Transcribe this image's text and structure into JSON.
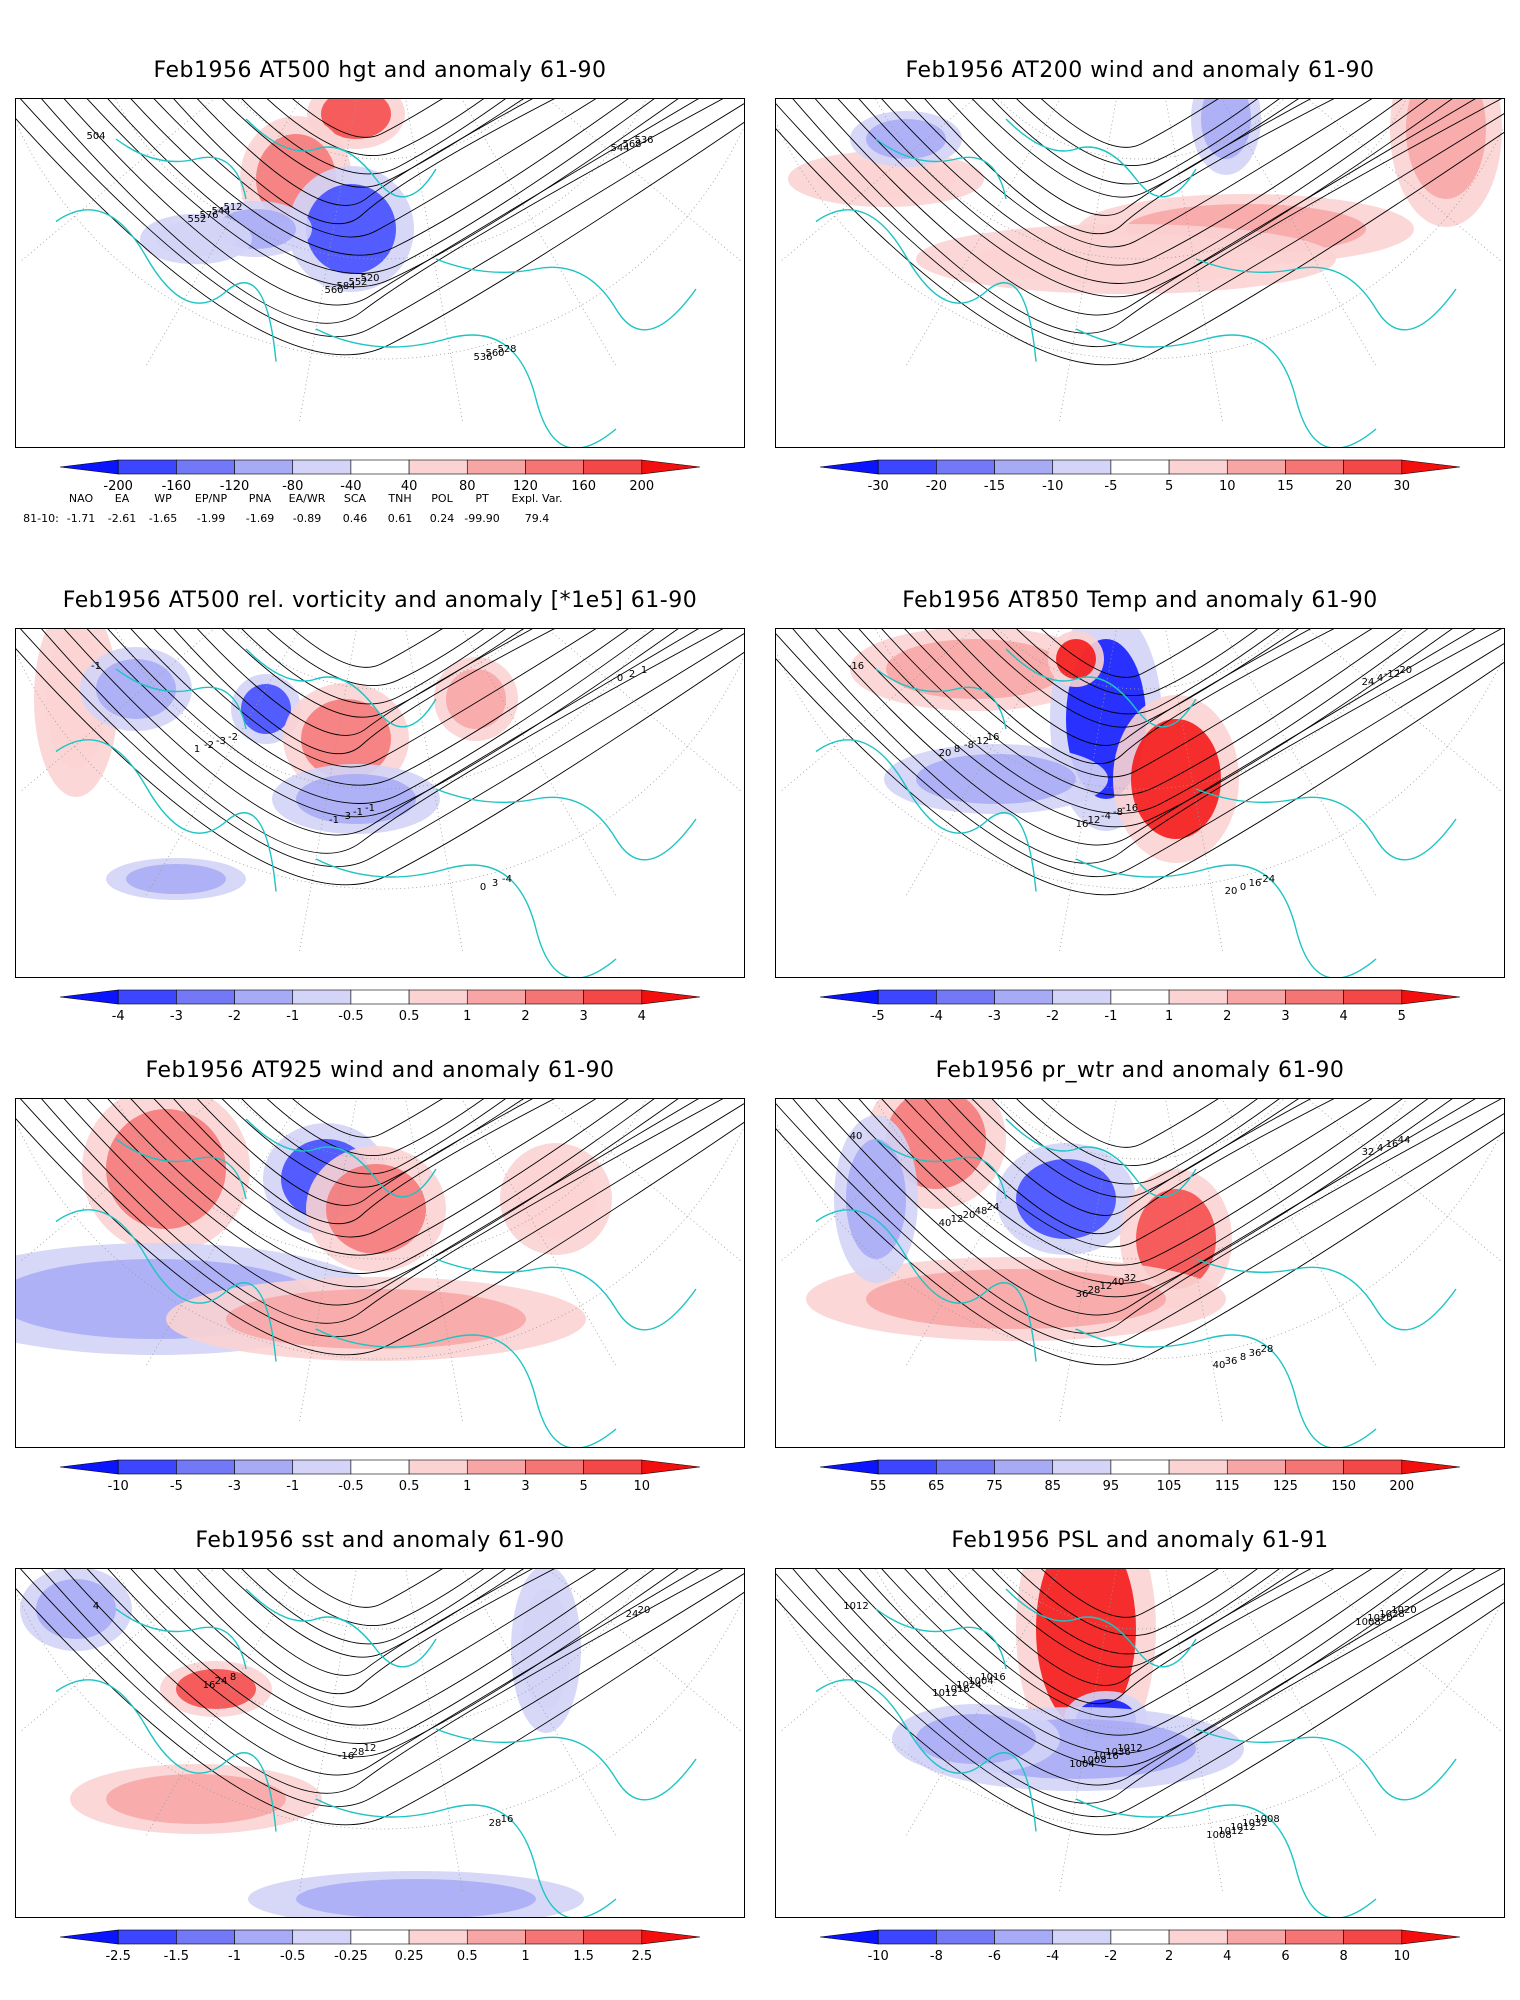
{
  "panels": [
    {
      "id": "p1",
      "title": "Feb1956 AT500 hgt and anomaly 61-90",
      "colorbar": {
        "labels": [
          "-200",
          "-160",
          "-120",
          "-80",
          "-40",
          "40",
          "80",
          "120",
          "160",
          "200"
        ]
      },
      "contour_labels": [
        "504",
        "512",
        "520",
        "528",
        "536",
        "544",
        "552",
        "560",
        "568",
        "576",
        "584",
        "536",
        "544",
        "552",
        "560"
      ]
    },
    {
      "id": "p2",
      "title": "Feb1956 AT200 wind and anomaly 61-90",
      "colorbar": {
        "labels": [
          "-30",
          "-20",
          "-15",
          "-10",
          "-5",
          "5",
          "10",
          "15",
          "20",
          "30"
        ]
      },
      "contour_labels": []
    },
    {
      "id": "p3",
      "title": "Feb1956 AT500 rel. vorticity and anomaly [*1e5] 61-90",
      "colorbar": {
        "labels": [
          "-4",
          "-3",
          "-2",
          "-1",
          "-0.5",
          "0.5",
          "1",
          "2",
          "3",
          "4"
        ]
      },
      "contour_labels": [
        "-1",
        "-2",
        "-1",
        "-4",
        "1",
        "-3",
        "-1",
        "3",
        "2",
        "-2",
        "-3",
        "0",
        "0",
        "1",
        "-1"
      ]
    },
    {
      "id": "p4",
      "title": "Feb1956 AT850 Temp and anomaly 61-90",
      "colorbar": {
        "labels": [
          "-5",
          "-4",
          "-3",
          "-2",
          "-1",
          "1",
          "2",
          "3",
          "4",
          "5"
        ]
      },
      "contour_labels": [
        "-16",
        "16",
        "-16",
        "-24",
        "-20",
        "-12",
        "-8",
        "16",
        "-12",
        "-8",
        "-4",
        "0",
        "4",
        "8",
        "12",
        "20",
        "24",
        "20",
        "16"
      ]
    },
    {
      "id": "p5",
      "title": "Feb1956 AT925 wind and anomaly 61-90",
      "colorbar": {
        "labels": [
          "-10",
          "-5",
          "-3",
          "-1",
          "-0.5",
          "0.5",
          "1",
          "3",
          "5",
          "10"
        ]
      },
      "contour_labels": []
    },
    {
      "id": "p6",
      "title": "Feb1956 pr_wtr and anomaly 61-90",
      "colorbar": {
        "labels": [
          "55",
          "65",
          "75",
          "85",
          "95",
          "105",
          "115",
          "125",
          "150",
          "200"
        ]
      },
      "contour_labels": [
        "40",
        "24",
        "32",
        "28",
        "44",
        "48",
        "40",
        "36",
        "16",
        "20",
        "12",
        "8",
        "4",
        "12",
        "28",
        "36",
        "32",
        "40",
        "36",
        "40"
      ]
    },
    {
      "id": "p7",
      "title": "Feb1956 sst and anomaly 61-90",
      "colorbar": {
        "labels": [
          "-2.5",
          "-1.5",
          "-1",
          "-0.5",
          "-0.25",
          "0.25",
          "0.5",
          "1",
          "1.5",
          "2.5"
        ]
      },
      "contour_labels": [
        "4",
        "8",
        "12",
        "16",
        "20",
        "24",
        "28",
        "28",
        "24",
        "16",
        "-16"
      ]
    },
    {
      "id": "p8",
      "title": "Feb1956 PSL and anomaly 61-91",
      "colorbar": {
        "labels": [
          "-10",
          "-8",
          "-6",
          "-4",
          "-2",
          "2",
          "4",
          "6",
          "8",
          "10"
        ]
      },
      "contour_labels": [
        "1012",
        "1016",
        "1012",
        "1008",
        "1020",
        "1004",
        "1036",
        "1032",
        "1028",
        "1024",
        "1016",
        "1012",
        "1020",
        "1016",
        "1008",
        "1012",
        "1008",
        "1012",
        "1004",
        "1008"
      ]
    }
  ],
  "indices": {
    "names": [
      "NAO",
      "EA",
      "WP",
      "EP/NP",
      "PNA",
      "EA/WR",
      "SCA",
      "TNH",
      "POL",
      "PT",
      "Expl. Var."
    ],
    "row_label": "81-10:",
    "values": [
      "-1.71",
      "-2.61",
      "-1.65",
      "-1.99",
      "-1.69",
      "-0.89",
      "0.46",
      "0.61",
      "0.24",
      "-99.90",
      "79.4"
    ]
  },
  "colors": {
    "scale": [
      "#0a14ff",
      "#3c46ff",
      "#7378f7",
      "#a7aaf5",
      "#d3d4f7",
      "#ffffff",
      "#fbd3d3",
      "#f8a5a5",
      "#f57575",
      "#f44747",
      "#f40f0f"
    ],
    "coast": "#1dc4c4",
    "contour": "#000000"
  }
}
